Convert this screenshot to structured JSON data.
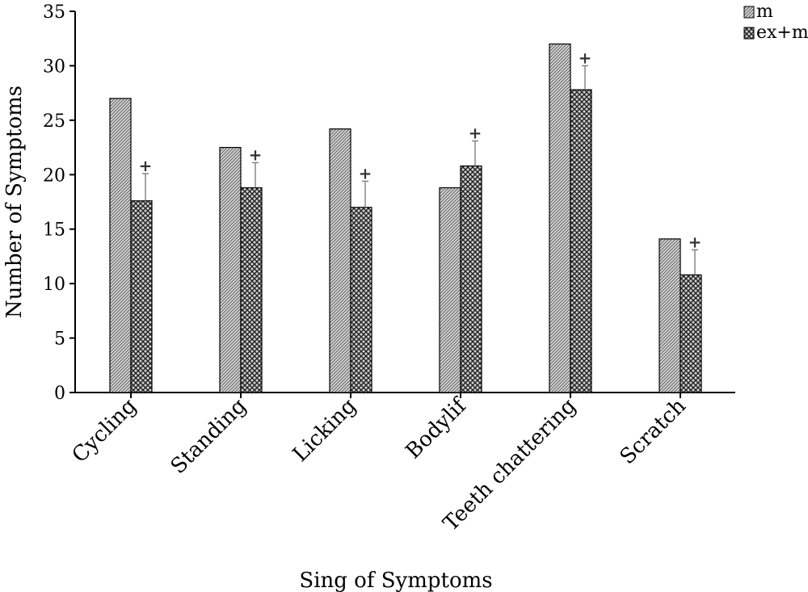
{
  "chart_data": {
    "type": "bar",
    "title": "",
    "xlabel": "Sing of Symptoms",
    "ylabel": "Number of Symptoms",
    "ylim": [
      0,
      35
    ],
    "yticks": [
      0,
      5,
      10,
      15,
      20,
      25,
      30,
      35
    ],
    "grid": false,
    "legend_position": "top-right",
    "categories": [
      "Cycling",
      "Standing",
      "Licking",
      "Bodylif",
      "Teeth chattering",
      "Scratch"
    ],
    "series": [
      {
        "name": "m",
        "values": [
          27.0,
          22.5,
          24.2,
          18.8,
          32.0,
          14.1
        ],
        "errors": [
          0,
          0,
          0,
          0,
          0,
          0
        ],
        "pattern": "fine"
      },
      {
        "name": "ex+m",
        "values": [
          17.6,
          18.8,
          17.0,
          20.8,
          27.8,
          10.8
        ],
        "errors": [
          2.5,
          2.3,
          2.4,
          2.3,
          2.2,
          2.3
        ],
        "pattern": "cross"
      }
    ],
    "annotations": {
      "marker": "+",
      "series": "ex+m",
      "categories": [
        "Cycling",
        "Standing",
        "Licking",
        "Bodylif",
        "Teeth chattering",
        "Scratch"
      ]
    },
    "colors": {
      "bar_fill": "#888888",
      "bar_stroke": "#000000",
      "axis": "#000000"
    }
  }
}
